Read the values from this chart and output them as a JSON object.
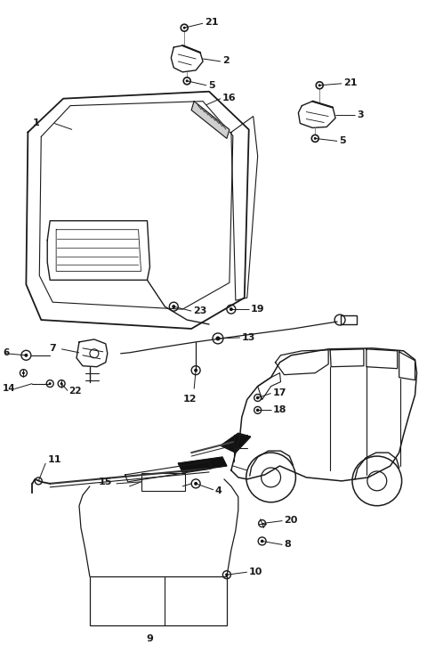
{
  "bg_color": "#ffffff",
  "line_color": "#1a1a1a",
  "gray_color": "#888888",
  "dark_color": "#111111",
  "fig_w": 4.8,
  "fig_h": 7.24,
  "dpi": 100
}
